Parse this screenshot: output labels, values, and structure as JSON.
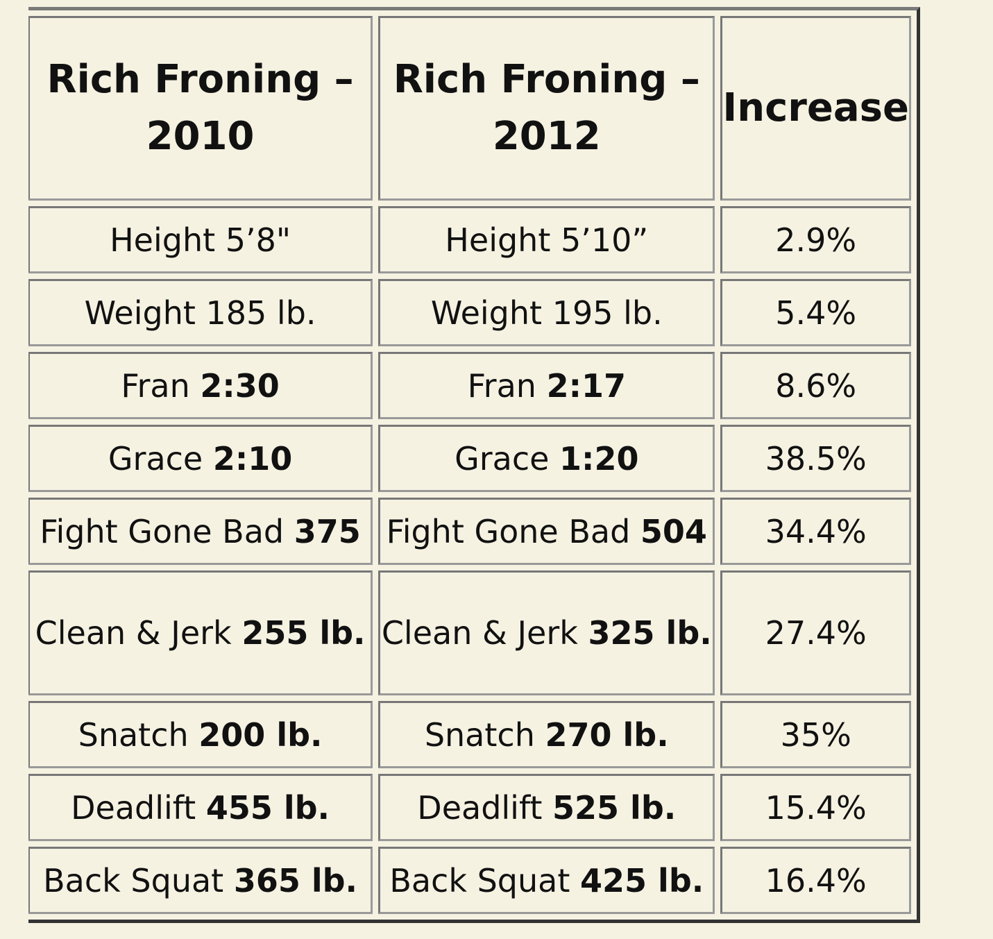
{
  "table": {
    "headers": [
      "Rich Froning – 2010",
      "Rich Froning – 2012",
      "Increase"
    ],
    "rows": [
      {
        "c1_label": "Height 5’8\"",
        "c1_value": "",
        "c2_label": "Height 5’10”",
        "c2_value": "",
        "increase": "2.9%"
      },
      {
        "c1_label": "Weight 185 lb.",
        "c1_value": "",
        "c2_label": "Weight 195 lb.",
        "c2_value": "",
        "increase": "5.4%"
      },
      {
        "c1_label": "Fran ",
        "c1_value": "2:30",
        "c2_label": "Fran ",
        "c2_value": "2:17",
        "increase": "8.6%"
      },
      {
        "c1_label": "Grace ",
        "c1_value": "2:10",
        "c2_label": "Grace ",
        "c2_value": "1:20",
        "increase": "38.5%"
      },
      {
        "c1_label": "Fight Gone Bad ",
        "c1_value": "375",
        "c2_label": "Fight Gone Bad ",
        "c2_value": "504",
        "increase": "34.4%"
      },
      {
        "c1_label": "Clean & Jerk ",
        "c1_value": "255 lb.",
        "c2_label": "Clean & Jerk ",
        "c2_value": "325 lb.",
        "increase": "27.4%"
      },
      {
        "c1_label": "Snatch ",
        "c1_value": "200 lb.",
        "c2_label": "Snatch ",
        "c2_value": "270 lb.",
        "increase": "35%"
      },
      {
        "c1_label": "Deadlift ",
        "c1_value": "455 lb.",
        "c2_label": "Deadlift ",
        "c2_value": "525 lb.",
        "increase": "15.4%"
      },
      {
        "c1_label": "Back Squat ",
        "c1_value": "365 lb.",
        "c2_label": "Back Squat ",
        "c2_value": "425 lb.",
        "increase": "16.4%"
      }
    ]
  }
}
